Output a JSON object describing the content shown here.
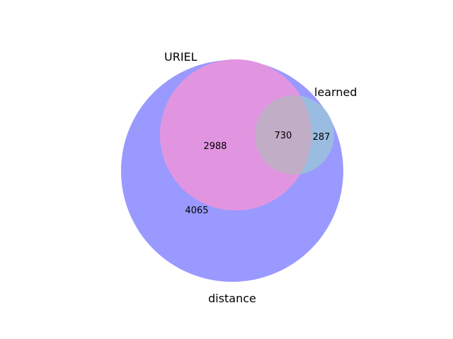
{
  "venn": {
    "sets": [
      {
        "name": "distance",
        "color": "#9999ff"
      },
      {
        "name": "URIEL",
        "color": "#e195e0"
      },
      {
        "name": "learned",
        "color": "#9abce0"
      }
    ],
    "overlap_color": "#c1adc5",
    "regions": {
      "distance_only": "4065",
      "distance_uriel": "2988",
      "distance_uriel_learned": "730",
      "distance_learned": "287"
    }
  }
}
